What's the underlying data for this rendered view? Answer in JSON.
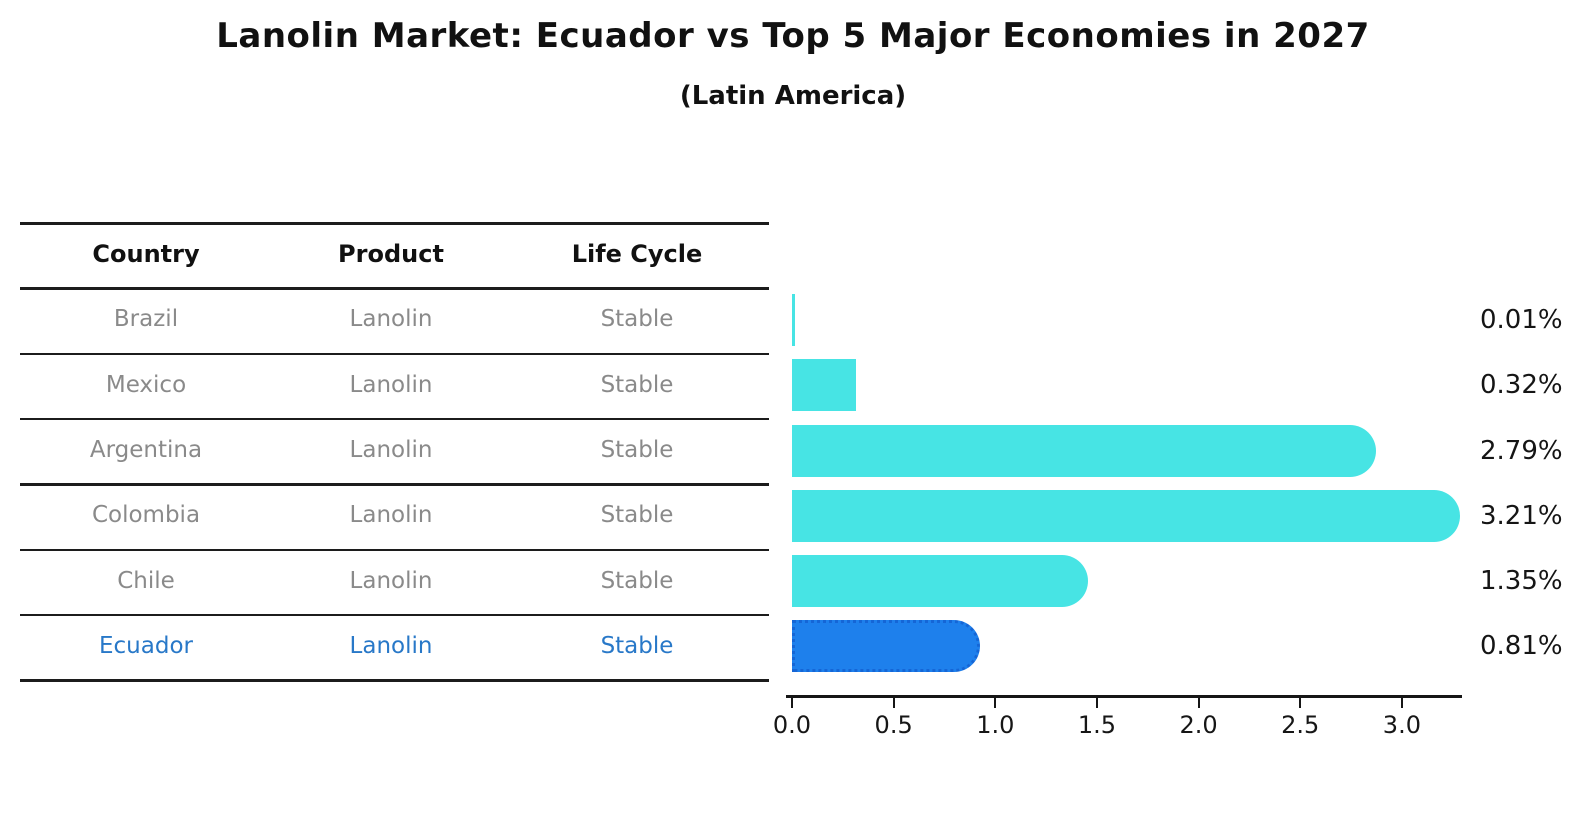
{
  "title": "Lanolin Market: Ecuador vs Top 5 Major Economies in 2027",
  "subtitle": "(Latin America)",
  "table": {
    "headers": [
      "Country",
      "Product",
      "Life Cycle"
    ],
    "rows": [
      {
        "country": "Brazil",
        "product": "Lanolin",
        "life_cycle": "Stable",
        "highlighted": false
      },
      {
        "country": "Mexico",
        "product": "Lanolin",
        "life_cycle": "Stable",
        "highlighted": false
      },
      {
        "country": "Argentina",
        "product": "Lanolin",
        "life_cycle": "Stable",
        "highlighted": false
      },
      {
        "country": "Colombia",
        "product": "Lanolin",
        "life_cycle": "Stable",
        "highlighted": false
      },
      {
        "country": "Chile",
        "product": "Lanolin",
        "life_cycle": "Stable",
        "highlighted": false
      },
      {
        "country": "Ecuador",
        "product": "Lanolin",
        "life_cycle": "Stable",
        "highlighted": true
      }
    ]
  },
  "chart_data": {
    "type": "bar",
    "orientation": "horizontal",
    "title": "Lanolin Market: Ecuador vs Top 5 Major Economies in 2027",
    "subtitle": "(Latin America)",
    "categories": [
      "Brazil",
      "Mexico",
      "Argentina",
      "Colombia",
      "Chile",
      "Ecuador"
    ],
    "values": [
      0.01,
      0.32,
      2.79,
      3.21,
      1.35,
      0.81
    ],
    "value_labels": [
      "0.01%",
      "0.32%",
      "2.79%",
      "3.21%",
      "1.35%",
      "0.81%"
    ],
    "x_tick_labels": [
      "0.0",
      "0.5",
      "1.0",
      "1.5",
      "2.0",
      "2.5",
      "3.0"
    ],
    "x_tick_values": [
      0.0,
      0.5,
      1.0,
      1.5,
      2.0,
      2.5,
      3.0
    ],
    "xlim": [
      0,
      3.3
    ],
    "grid": false,
    "legend": false,
    "highlight_index": 5,
    "bar_color": "#47e4e4",
    "highlight_bar_color": "#1e80ec",
    "highlight_border_color": "#1566d6"
  },
  "colors": {
    "row_text": "#8a8a8a",
    "highlight_text": "#2878c8",
    "table_line": "#1c1c1c",
    "axis": "#161616",
    "value_label_text": "#151515",
    "background": "#ffffff"
  }
}
